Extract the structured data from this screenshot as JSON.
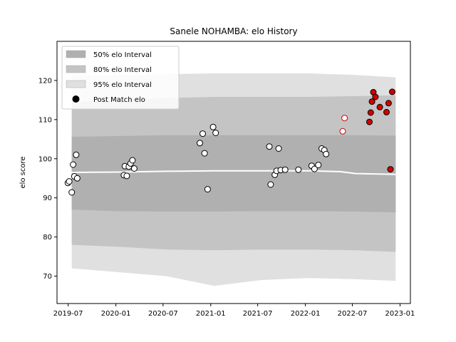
{
  "chart_data": {
    "type": "line",
    "title": "Sanele NOHAMBA: elo History",
    "xlabel": "",
    "ylabel": "elo score",
    "xlim": [
      "2019-05-19",
      "2023-02-10"
    ],
    "ylim": [
      63,
      130
    ],
    "grid": false,
    "legend_placement": "top-left",
    "x_ticks": [
      "2019-07",
      "2020-01",
      "2020-07",
      "2021-01",
      "2021-07",
      "2022-01",
      "2022-07",
      "2023-01"
    ],
    "y_ticks": [
      70,
      80,
      90,
      100,
      110,
      120
    ],
    "colors": {
      "band_50": "#b0b0b0",
      "band_80": "#c4c4c4",
      "band_95": "#e0e0e0",
      "median_line": "#ffffff",
      "point_fill_white": "#ffffff",
      "point_fill_red": "#d00000",
      "point_edge_black": "#000000",
      "point_edge_red": "#d00000"
    },
    "legend": [
      {
        "label": "50% elo Interval",
        "kind": "band",
        "key": "band_50"
      },
      {
        "label": "80% elo Interval",
        "kind": "band",
        "key": "band_80"
      },
      {
        "label": "95% elo Interval",
        "kind": "band",
        "key": "band_95"
      },
      {
        "label": "Post Match elo",
        "kind": "marker"
      }
    ],
    "median_elo": {
      "x": [
        "2019-07-15",
        "2020-01-15",
        "2020-07-15",
        "2021-01-15",
        "2021-07-15",
        "2022-01-15",
        "2022-05-15",
        "2022-07-15",
        "2022-12-15"
      ],
      "y": [
        96.5,
        96.6,
        96.8,
        96.9,
        96.9,
        96.9,
        96.7,
        96.2,
        96.0
      ]
    },
    "bands": {
      "x": [
        "2019-07-15",
        "2020-01-15",
        "2020-07-15",
        "2021-01-15",
        "2021-07-15",
        "2022-01-15",
        "2022-07-15",
        "2022-12-15"
      ],
      "p50_low": [
        87,
        86.6,
        86.5,
        86.5,
        86.6,
        86.6,
        86.5,
        86.3
      ],
      "p50_high": [
        105.6,
        105.8,
        106.0,
        106.0,
        106.0,
        106.0,
        106.0,
        105.9
      ],
      "p80_low": [
        78,
        77.5,
        76.8,
        76.6,
        76.8,
        76.8,
        76.6,
        76.2
      ],
      "p80_high": [
        114.5,
        115.0,
        115.5,
        115.8,
        115.8,
        115.8,
        116.0,
        116.2
      ],
      "p95_low": [
        72,
        71,
        70,
        67.5,
        69,
        69.5,
        69.2,
        68.8
      ],
      "p95_high": [
        121.2,
        121.4,
        121.6,
        121.8,
        121.8,
        121.8,
        121.4,
        120.8
      ]
    },
    "post_match_elo": [
      {
        "x": "2019-06-30",
        "y": 93.8,
        "style": "white"
      },
      {
        "x": "2019-07-05",
        "y": 94.2,
        "style": "white"
      },
      {
        "x": "2019-07-15",
        "y": 91.4,
        "style": "white"
      },
      {
        "x": "2019-07-20",
        "y": 98.5,
        "style": "white"
      },
      {
        "x": "2019-07-25",
        "y": 95.5,
        "style": "white"
      },
      {
        "x": "2019-08-01",
        "y": 101.0,
        "style": "white"
      },
      {
        "x": "2019-08-05",
        "y": 95.0,
        "style": "white"
      },
      {
        "x": "2020-02-01",
        "y": 95.8,
        "style": "white"
      },
      {
        "x": "2020-02-05",
        "y": 98.1,
        "style": "white"
      },
      {
        "x": "2020-02-12",
        "y": 95.6,
        "style": "white"
      },
      {
        "x": "2020-02-20",
        "y": 98.0,
        "style": "white"
      },
      {
        "x": "2020-02-27",
        "y": 98.8,
        "style": "white"
      },
      {
        "x": "2020-03-05",
        "y": 99.6,
        "style": "white"
      },
      {
        "x": "2020-03-12",
        "y": 97.5,
        "style": "white"
      },
      {
        "x": "2020-11-20",
        "y": 104.0,
        "style": "white"
      },
      {
        "x": "2020-12-01",
        "y": 106.4,
        "style": "white"
      },
      {
        "x": "2020-12-08",
        "y": 101.4,
        "style": "white"
      },
      {
        "x": "2020-12-20",
        "y": 92.2,
        "style": "white"
      },
      {
        "x": "2021-01-10",
        "y": 108.1,
        "style": "white"
      },
      {
        "x": "2021-01-20",
        "y": 106.6,
        "style": "white"
      },
      {
        "x": "2021-08-15",
        "y": 103.1,
        "style": "white"
      },
      {
        "x": "2021-08-20",
        "y": 93.4,
        "style": "white"
      },
      {
        "x": "2021-09-05",
        "y": 95.9,
        "style": "white"
      },
      {
        "x": "2021-09-12",
        "y": 96.9,
        "style": "white"
      },
      {
        "x": "2021-09-20",
        "y": 102.6,
        "style": "white"
      },
      {
        "x": "2021-09-28",
        "y": 97.1,
        "style": "white"
      },
      {
        "x": "2021-10-15",
        "y": 97.2,
        "style": "white"
      },
      {
        "x": "2021-12-05",
        "y": 97.2,
        "style": "white"
      },
      {
        "x": "2022-01-25",
        "y": 98.2,
        "style": "white"
      },
      {
        "x": "2022-02-05",
        "y": 97.4,
        "style": "white"
      },
      {
        "x": "2022-02-20",
        "y": 98.4,
        "style": "white"
      },
      {
        "x": "2022-03-05",
        "y": 102.6,
        "style": "white"
      },
      {
        "x": "2022-03-15",
        "y": 102.2,
        "style": "white"
      },
      {
        "x": "2022-03-22",
        "y": 101.2,
        "style": "white"
      },
      {
        "x": "2022-05-25",
        "y": 107.0,
        "style": "white-red"
      },
      {
        "x": "2022-06-01",
        "y": 110.4,
        "style": "white-red"
      },
      {
        "x": "2022-09-05",
        "y": 109.4,
        "style": "red"
      },
      {
        "x": "2022-09-10",
        "y": 111.8,
        "style": "red"
      },
      {
        "x": "2022-09-15",
        "y": 114.6,
        "style": "red"
      },
      {
        "x": "2022-09-20",
        "y": 117.0,
        "style": "red"
      },
      {
        "x": "2022-09-28",
        "y": 115.8,
        "style": "red"
      },
      {
        "x": "2022-10-15",
        "y": 113.2,
        "style": "red"
      },
      {
        "x": "2022-11-10",
        "y": 111.9,
        "style": "red"
      },
      {
        "x": "2022-11-18",
        "y": 114.2,
        "style": "red"
      },
      {
        "x": "2022-11-25",
        "y": 97.3,
        "style": "red"
      },
      {
        "x": "2022-12-02",
        "y": 117.1,
        "style": "red"
      }
    ]
  }
}
